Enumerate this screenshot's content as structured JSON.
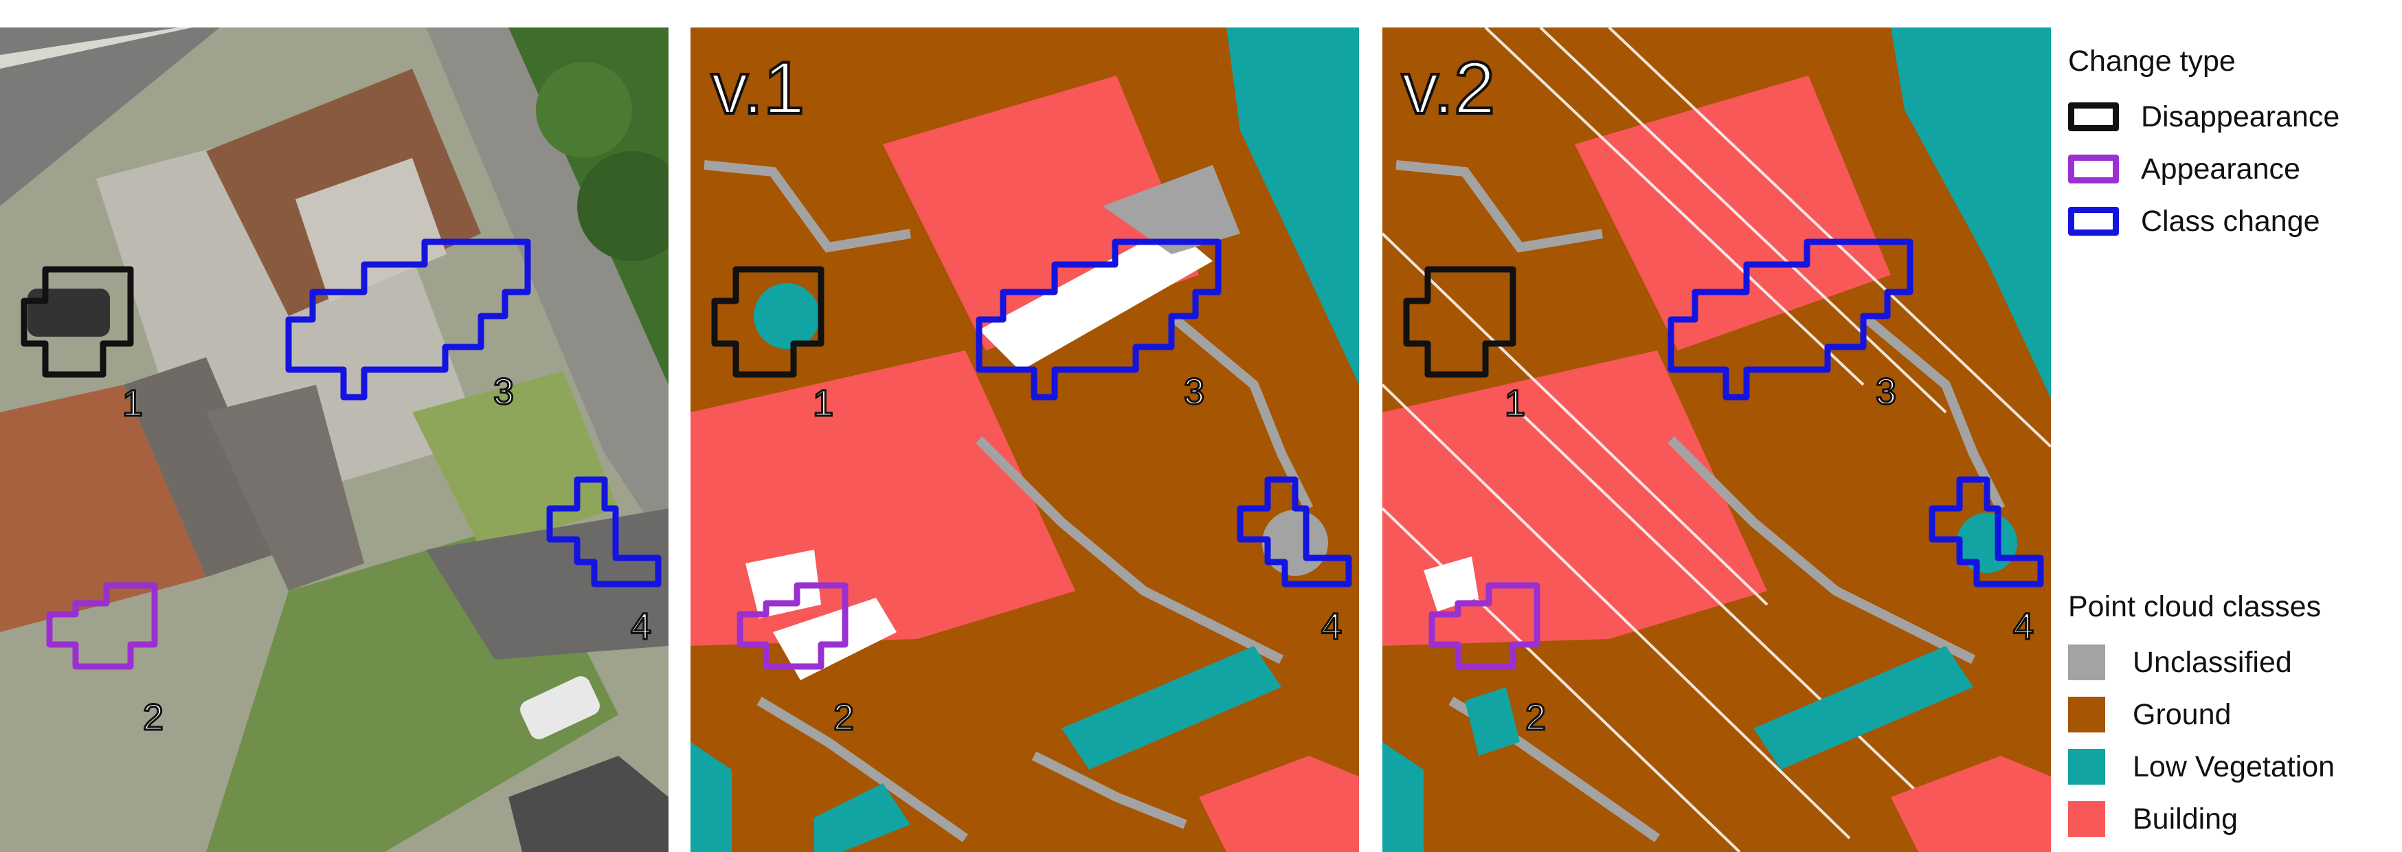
{
  "panels": {
    "v1_label": "v.1",
    "v2_label": "v.2",
    "region_numbers": [
      "1",
      "2",
      "3",
      "4"
    ]
  },
  "legend_change": {
    "title": "Change type",
    "items": [
      {
        "label": "Disappearance",
        "color": "#111111"
      },
      {
        "label": "Appearance",
        "color": "#9b30d0"
      },
      {
        "label": "Class change",
        "color": "#1414e0"
      }
    ]
  },
  "legend_classes": {
    "title": "Point cloud classes",
    "items": [
      {
        "label": "Unclassified",
        "color": "#a3a3a3"
      },
      {
        "label": "Ground",
        "color": "#a65502"
      },
      {
        "label": "Low Vegetation",
        "color": "#12a3a3"
      },
      {
        "label": "Building",
        "color": "#f85858"
      }
    ]
  }
}
